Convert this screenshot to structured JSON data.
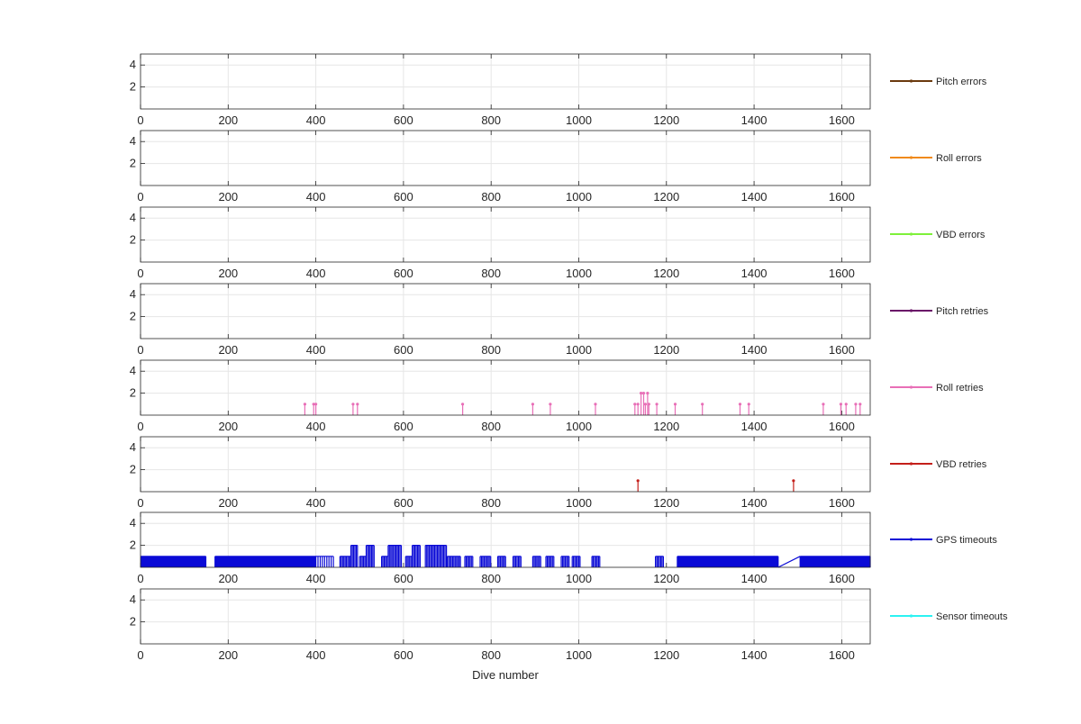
{
  "chart_data": {
    "type": "line",
    "xlabel": "Dive number",
    "xlim": [
      0,
      1665
    ],
    "ylim": [
      0,
      5
    ],
    "xticks": [
      0,
      200,
      400,
      600,
      800,
      1000,
      1200,
      1400,
      1600
    ],
    "yticks": [
      2,
      4
    ],
    "grid": true,
    "legend_placement": "right of each panel",
    "panels": [
      {
        "name": "Pitch errors",
        "color": "#6b3a0e",
        "points": []
      },
      {
        "name": "Roll errors",
        "color": "#f08a1a",
        "points": []
      },
      {
        "name": "VBD errors",
        "color": "#7ef03a",
        "points": []
      },
      {
        "name": "Pitch retries",
        "color": "#6a1468",
        "points": []
      },
      {
        "name": "Roll retries",
        "color": "#e86fb7",
        "points": [
          [
            375,
            1
          ],
          [
            395,
            1
          ],
          [
            400,
            1
          ],
          [
            485,
            1
          ],
          [
            495,
            1
          ],
          [
            735,
            1
          ],
          [
            895,
            1
          ],
          [
            935,
            1
          ],
          [
            1038,
            1
          ],
          [
            1128,
            1
          ],
          [
            1135,
            1
          ],
          [
            1142,
            2
          ],
          [
            1148,
            2
          ],
          [
            1152,
            1
          ],
          [
            1157,
            2
          ],
          [
            1160,
            1
          ],
          [
            1178,
            1
          ],
          [
            1220,
            1
          ],
          [
            1282,
            1
          ],
          [
            1368,
            1
          ],
          [
            1388,
            1
          ],
          [
            1558,
            1
          ],
          [
            1598,
            1
          ],
          [
            1610,
            1
          ],
          [
            1632,
            1
          ],
          [
            1642,
            1
          ]
        ]
      },
      {
        "name": "VBD retries",
        "color": "#c41f1a",
        "points": [
          [
            1135,
            1
          ],
          [
            1490,
            1
          ]
        ]
      },
      {
        "name": "GPS timeouts",
        "color": "#0a0ad6",
        "points": []
      },
      {
        "name": "Sensor timeouts",
        "color": "#2cf2f2",
        "points": []
      }
    ]
  }
}
